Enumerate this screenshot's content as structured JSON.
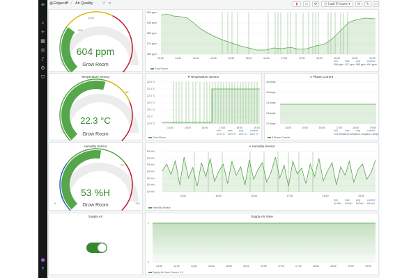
{
  "topbar": {
    "breadcrumb_root": "Edgeciiff",
    "separator": "/",
    "dashboard_title": "Air Quality",
    "time_range": "Last 6 hours"
  },
  "colors": {
    "green": "#56a64b",
    "gauge_green": "#37872d",
    "yellow": "#e0b400",
    "red": "#c4162a",
    "blue": "#1f60c4",
    "sidebar": "#161719"
  },
  "panels": {
    "co2_gauge": {
      "value_text": "604 ppm",
      "value": 604,
      "min": 0,
      "max": 2000,
      "thresholds": [
        "600",
        "1200"
      ],
      "caption": "Grow Room"
    },
    "co2_graph": {
      "y_ticks": [
        "600 ppm",
        "590 ppm",
        "580 ppm",
        "570 ppm",
        "560 ppm"
      ],
      "x_ticks": [
        "15:30",
        "14:00",
        "14:30",
        "15:00",
        "15:30",
        "16:00",
        "16:30",
        "17:00",
        "17:30",
        "18:00",
        "18:30",
        "19:00",
        "19:30"
      ],
      "legend": "Grow Room",
      "stats_headers": [
        "min",
        "max",
        "avg",
        "current"
      ],
      "stats_values": [
        "556 ppm",
        "617 ppm",
        "585 ppm",
        "604 ppm"
      ]
    },
    "temp_gauge": {
      "title": "Temperature Sensor",
      "value_text": "22.3 °C",
      "value": 22.3,
      "thresholds": [
        "22.5",
        "30"
      ],
      "caption": "Grow Room"
    },
    "temp_graph": {
      "title": "Temperature Sensor",
      "y_ticks": [
        "22.5 °C",
        "22.4 °C",
        "22.3 °C",
        "22.2 °C",
        "22.1 °C",
        "22 °C",
        "21.9 °C"
      ],
      "x_ticks": [
        "14:00",
        "15:00",
        "16:00",
        "17:00",
        "18:00",
        "19:00"
      ],
      "legend": "Grow Room",
      "stats_headers": [
        "min",
        "max",
        "avg",
        "current"
      ],
      "stats_values": [
        "21.9 °C",
        "22.3 °C",
        "22.1 °C",
        "22.3 °C"
      ]
    },
    "phase_graph": {
      "title": "A Phase Current",
      "y_ticks": [
        "16 Amps",
        "15 Amps",
        "14 Amps",
        "13 Amps",
        "12 Amps"
      ],
      "x_ticks": [
        "14:00",
        "15:00",
        "16:00",
        "17:00",
        "18:00",
        "19:00"
      ],
      "legend": "A Phase Current",
      "stats_headers": [
        "min",
        "max",
        "avg",
        "current"
      ],
      "stats_values": [
        "14.1 Amps",
        "14.1 Amps",
        "14.1 Amps",
        "14.1 Amps"
      ]
    },
    "humidity_gauge": {
      "title": "Humidity Sensor",
      "value_text": "53 %H",
      "value": 53,
      "thresholds": [
        "30",
        "70"
      ],
      "min_label": "0",
      "max_label": "100",
      "caption": "Grow Room"
    },
    "humidity_graph": {
      "title": "Humidity Sensor",
      "y_ticks": [
        "53 %H",
        "53 %H",
        "53 %H",
        "53 %H",
        "52 %H",
        "52 %H",
        "52 %H"
      ],
      "x_ticks": [
        "14:00",
        "15:00",
        "16:00",
        "17:00",
        "18:00",
        "19:00"
      ],
      "legend": "Humidity Sensor",
      "stats_headers": [
        "min",
        "max",
        "avg",
        "current"
      ],
      "stats_values": [
        "52 %H",
        "53 %H",
        "53 %H",
        "53 %H"
      ]
    },
    "supply_air": {
      "title": "Supply Air",
      "toggle_on": true
    },
    "supply_vane": {
      "title": "Supply Air Vane",
      "y_ticks": [
        "1",
        "0"
      ],
      "x_ticks": [
        "13:30",
        "14:00",
        "14:30",
        "15:00",
        "15:30",
        "16:00",
        "16:30",
        "17:00",
        "17:30",
        "18:00",
        "18:30",
        "19:00",
        "19:30"
      ],
      "legend": "Supply Air Vane  Current: 1.0"
    }
  }
}
